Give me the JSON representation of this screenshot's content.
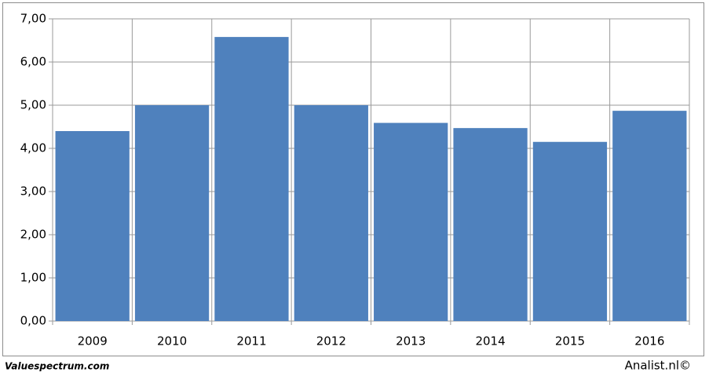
{
  "chart_data": {
    "type": "bar",
    "categories": [
      "2009",
      "2010",
      "2011",
      "2012",
      "2013",
      "2014",
      "2015",
      "2016"
    ],
    "values": [
      4.4,
      5.0,
      6.58,
      5.0,
      4.59,
      4.47,
      4.15,
      4.87
    ],
    "color": "#4f81bd",
    "ylim": [
      0,
      7
    ],
    "yticks": [
      {
        "value": 0,
        "label": "0,00"
      },
      {
        "value": 1,
        "label": "1,00"
      },
      {
        "value": 2,
        "label": "2,00"
      },
      {
        "value": 3,
        "label": "3,00"
      },
      {
        "value": 4,
        "label": "4,00"
      },
      {
        "value": 5,
        "label": "5,00"
      },
      {
        "value": 6,
        "label": "6,00"
      },
      {
        "value": 7,
        "label": "7,00"
      }
    ],
    "grid": true
  },
  "footer": {
    "left": "Valuespectrum.com",
    "right": "Analist.nl©"
  }
}
